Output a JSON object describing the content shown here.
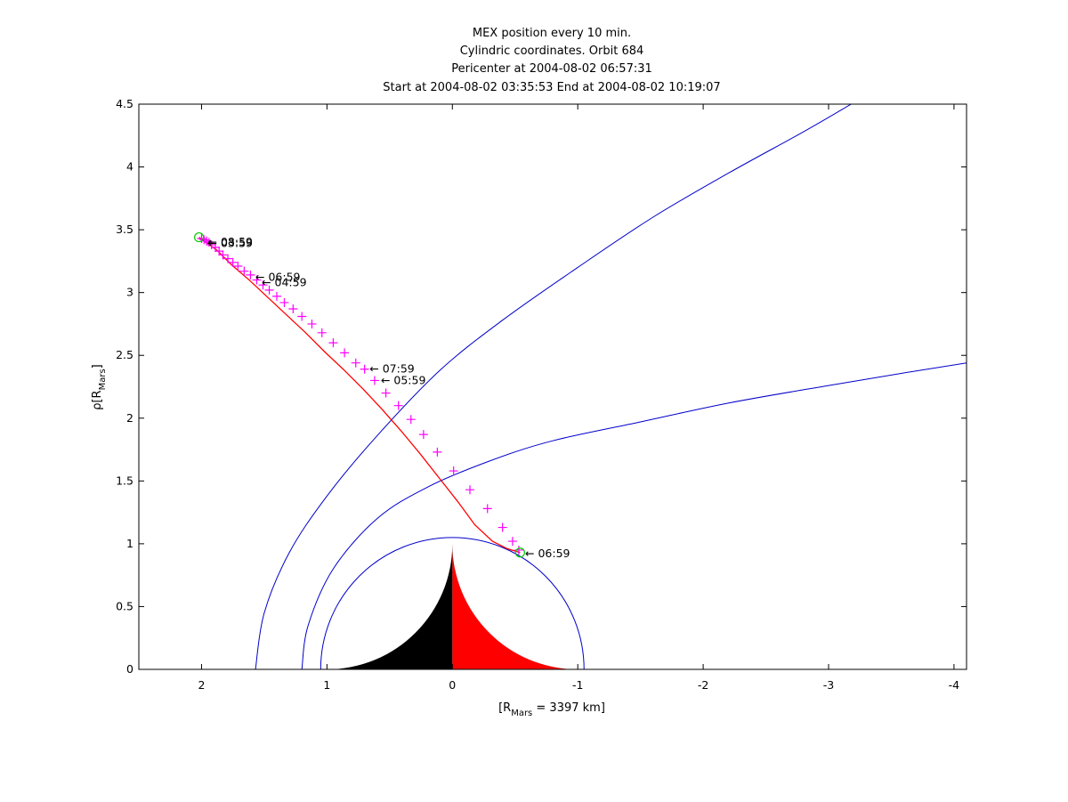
{
  "figure": {
    "title_lines": [
      "MEX position every 10 min.",
      "Cylindric coordinates. Orbit 684",
      "Pericenter at 2004-08-02 06:57:31",
      "Start at 2004-08-02 03:35:53 End at 2004-08-02 10:19:07"
    ],
    "xlabel_main": "[R",
    "xlabel_sub": "Mars",
    "xlabel_tail": " = 3397 km]",
    "ylabel_main": "ρ[R",
    "ylabel_sub": "Mars",
    "ylabel_tail": "]"
  },
  "chart_data": {
    "type": "line",
    "x_reversed": true,
    "xlim": [
      2.5,
      -4.1
    ],
    "ylim": [
      0,
      4.5
    ],
    "xticks": [
      2,
      1,
      0,
      -1,
      -2,
      -3,
      -4
    ],
    "xtick_labels": [
      "2",
      "1",
      "0",
      "-1",
      "-2",
      "-3",
      "-4"
    ],
    "yticks": [
      0,
      0.5,
      1,
      1.5,
      2,
      2.5,
      3,
      3.5,
      4,
      4.5
    ],
    "ytick_labels": [
      "0",
      "0.5",
      "1",
      "1.5",
      "2",
      "2.5",
      "3",
      "3.5",
      "4",
      "4.5"
    ],
    "colors": {
      "orbit": "#ff0000",
      "markers": "#ff00ff",
      "boundaries": "#0000cc",
      "planet_dayside": "#ff0000",
      "planet_nightside": "#000000",
      "endpoint_circles": "#00cc00",
      "axes": "#000000"
    },
    "planet": {
      "radius": 1.0
    },
    "boundaries": [
      {
        "kind": "circle",
        "radius": 1.05
      },
      {
        "kind": "curve",
        "points": [
          [
            1.57,
            0
          ],
          [
            1.5,
            0.45
          ],
          [
            1.3,
            0.93
          ],
          [
            1.0,
            1.38
          ],
          [
            0.6,
            1.86
          ],
          [
            0.1,
            2.38
          ],
          [
            -0.4,
            2.78
          ],
          [
            -1.0,
            3.2
          ],
          [
            -1.6,
            3.6
          ],
          [
            -2.2,
            3.95
          ],
          [
            -2.8,
            4.28
          ],
          [
            -3.18,
            4.5
          ]
        ]
      },
      {
        "kind": "curve",
        "points": [
          [
            1.2,
            0
          ],
          [
            1.15,
            0.35
          ],
          [
            0.95,
            0.8
          ],
          [
            0.6,
            1.2
          ],
          [
            0.2,
            1.45
          ],
          [
            -0.3,
            1.66
          ],
          [
            -0.8,
            1.82
          ],
          [
            -1.5,
            1.97
          ],
          [
            -2.2,
            2.12
          ],
          [
            -3.0,
            2.26
          ],
          [
            -3.6,
            2.36
          ],
          [
            -4.1,
            2.44
          ]
        ]
      }
    ],
    "orbit_points": [
      [
        2.02,
        3.44
      ],
      [
        1.88,
        3.34
      ],
      [
        1.76,
        3.22
      ],
      [
        1.62,
        3.1
      ],
      [
        1.47,
        2.96
      ],
      [
        1.32,
        2.82
      ],
      [
        1.17,
        2.68
      ],
      [
        1.02,
        2.53
      ],
      [
        0.86,
        2.38
      ],
      [
        0.71,
        2.23
      ],
      [
        0.56,
        2.07
      ],
      [
        0.41,
        1.9
      ],
      [
        0.26,
        1.72
      ],
      [
        0.11,
        1.53
      ],
      [
        -0.04,
        1.34
      ],
      [
        -0.18,
        1.15
      ],
      [
        -0.32,
        1.02
      ],
      [
        -0.44,
        0.96
      ],
      [
        -0.54,
        0.93
      ]
    ],
    "markers": [
      [
        2.0,
        3.43
      ],
      [
        1.98,
        3.42
      ],
      [
        1.96,
        3.41
      ],
      [
        1.94,
        3.4
      ],
      [
        1.92,
        3.38
      ],
      [
        1.89,
        3.36
      ],
      [
        1.86,
        3.33
      ],
      [
        1.83,
        3.3
      ],
      [
        1.79,
        3.27
      ],
      [
        1.75,
        3.24
      ],
      [
        1.71,
        3.21
      ],
      [
        1.66,
        3.17
      ],
      [
        1.61,
        3.14
      ],
      [
        1.56,
        3.1
      ],
      [
        1.51,
        3.06
      ],
      [
        1.46,
        3.02
      ],
      [
        1.4,
        2.97
      ],
      [
        1.34,
        2.92
      ],
      [
        1.27,
        2.87
      ],
      [
        1.2,
        2.81
      ],
      [
        1.12,
        2.75
      ],
      [
        1.04,
        2.68
      ],
      [
        0.95,
        2.6
      ],
      [
        0.86,
        2.52
      ],
      [
        0.77,
        2.44
      ],
      [
        0.7,
        2.39
      ],
      [
        0.62,
        2.3
      ],
      [
        0.53,
        2.2
      ],
      [
        0.43,
        2.1
      ],
      [
        0.33,
        1.99
      ],
      [
        0.23,
        1.87
      ],
      [
        0.12,
        1.73
      ],
      [
        -0.01,
        1.58
      ],
      [
        -0.14,
        1.43
      ],
      [
        -0.28,
        1.28
      ],
      [
        -0.4,
        1.13
      ],
      [
        -0.48,
        1.02
      ],
      [
        -0.53,
        0.95
      ]
    ],
    "endpoint_circles": [
      [
        2.02,
        3.44
      ],
      [
        -0.54,
        0.93
      ]
    ],
    "annotations": [
      {
        "label": "03:59",
        "x": 1.95,
        "y": 3.39
      },
      {
        "label": "08:59",
        "x": 1.95,
        "y": 3.4
      },
      {
        "label": "06:59",
        "x": 1.57,
        "y": 3.12
      },
      {
        "label": "04:59",
        "x": 1.52,
        "y": 3.08
      },
      {
        "label": "07:59",
        "x": 0.66,
        "y": 2.39
      },
      {
        "label": "05:59",
        "x": 0.57,
        "y": 2.3
      },
      {
        "label": "06:59",
        "x": -0.58,
        "y": 0.92
      }
    ]
  }
}
